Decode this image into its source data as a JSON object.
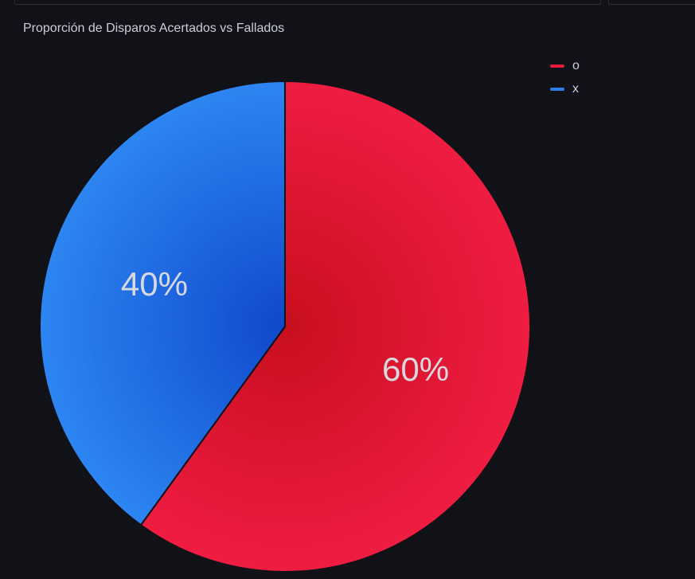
{
  "panel": {
    "title": "Proporción de Disparos Acertados vs Fallados"
  },
  "chart_data": {
    "type": "pie",
    "title": "Proporción de Disparos Acertados vs Fallados",
    "legend_position": "top-right",
    "categories": [
      "o",
      "x"
    ],
    "values": [
      60,
      40
    ],
    "labels": [
      "60%",
      "40%"
    ],
    "colors": [
      "#e8193c",
      "#2d7ce8"
    ]
  },
  "legend": {
    "items": [
      {
        "label": "o",
        "color": "#e8193c"
      },
      {
        "label": "x",
        "color": "#2d7ce8"
      }
    ]
  }
}
